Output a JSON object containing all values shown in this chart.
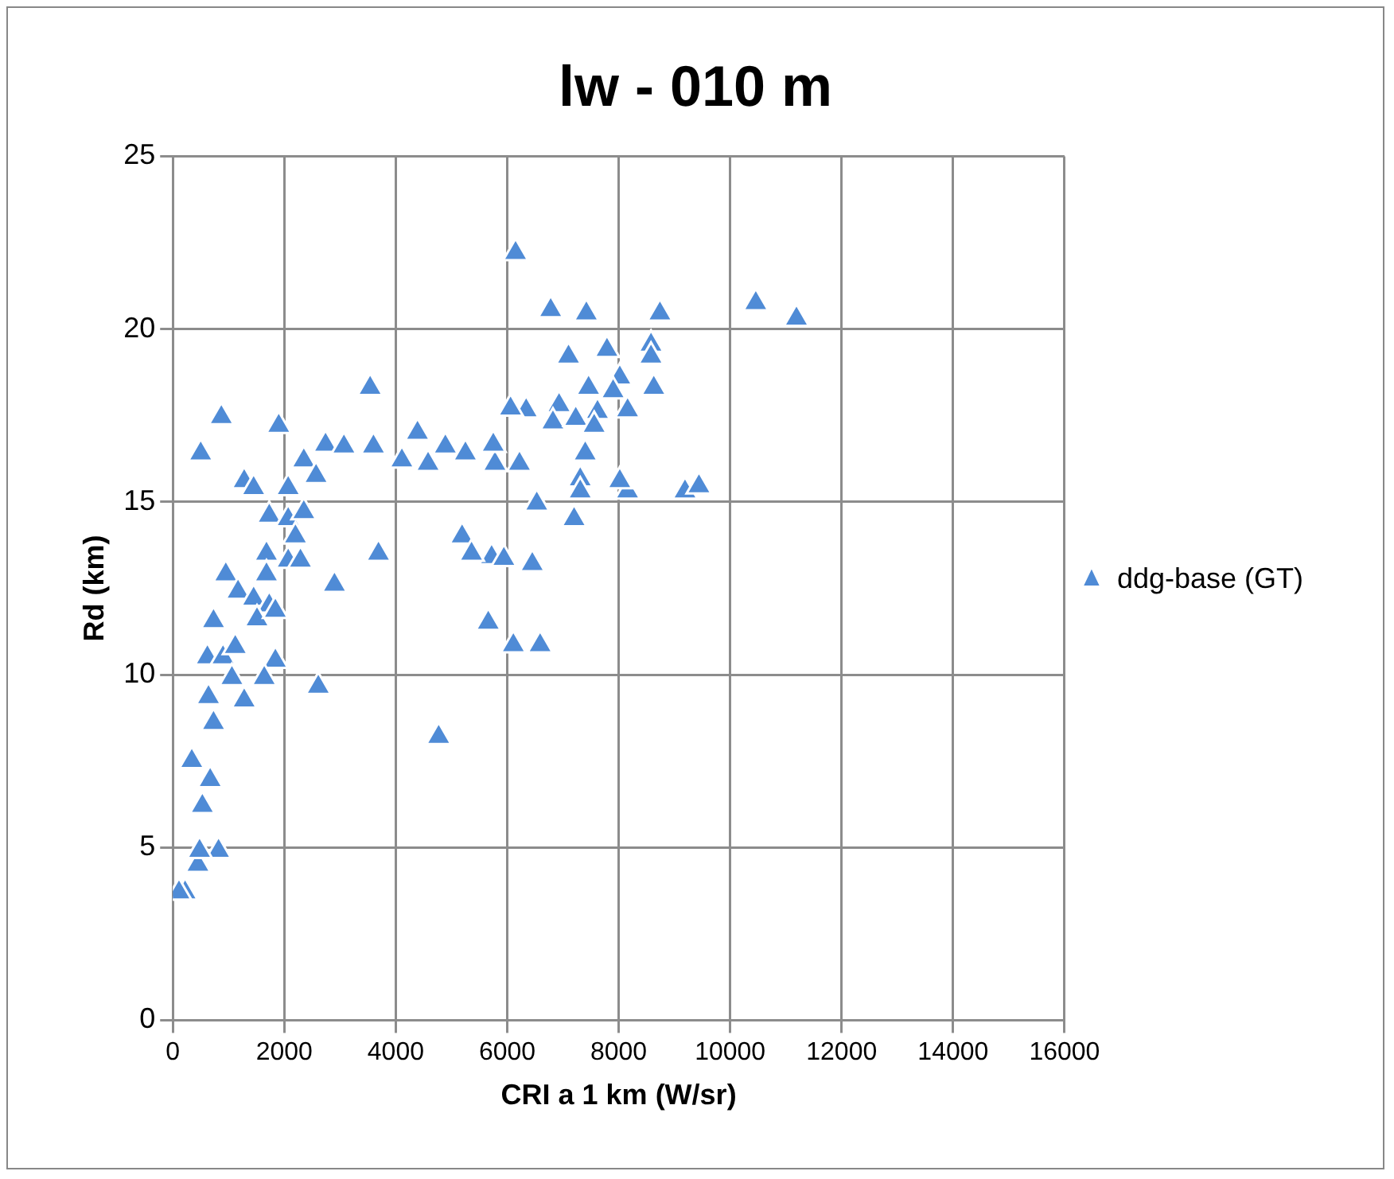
{
  "chart_data": {
    "type": "scatter",
    "title": "lw - 010 m",
    "xlabel": "CRI a 1 km (W/sr)",
    "ylabel": "Rd (km)",
    "xlim": [
      0,
      16000
    ],
    "xticks": [
      0,
      2000,
      4000,
      6000,
      8000,
      10000,
      12000,
      14000,
      16000
    ],
    "ylim": [
      0,
      25
    ],
    "yticks": [
      0,
      5,
      10,
      15,
      20,
      25
    ],
    "grid": true,
    "legend": "right",
    "marker": "triangle",
    "series": [
      {
        "name": "ddg-base (GT)",
        "color": "#4f8bd6",
        "x": [
          6150,
          10460,
          11190,
          6780,
          7420,
          8740,
          7100,
          7790,
          8580,
          8580,
          8020,
          8630,
          7900,
          7460,
          6930,
          6340,
          6060,
          6820,
          7230,
          7620,
          8160,
          7560,
          7400,
          5780,
          6220,
          7310,
          7310,
          8160,
          8020,
          9190,
          9440,
          6530,
          7200,
          5720,
          5940,
          6450,
          5660,
          6110,
          6590,
          3540,
          870,
          1900,
          500,
          2350,
          2740,
          3070,
          3600,
          4390,
          4110,
          4580,
          4890,
          5250,
          5750,
          1280,
          1450,
          2070,
          2570,
          1730,
          2070,
          2350,
          2200,
          3690,
          5190,
          5360,
          1680,
          2070,
          950,
          1680,
          2290,
          2900,
          1170,
          1450,
          1730,
          730,
          1510,
          1840,
          620,
          900,
          1120,
          1840,
          1060,
          1640,
          640,
          1280,
          730,
          2610,
          4770,
          340,
          670,
          530,
          450,
          820,
          480,
          220,
          110
        ],
        "values": [
          22.2,
          20.75,
          20.3,
          20.55,
          20.45,
          20.45,
          19.2,
          19.4,
          19.55,
          19.2,
          18.6,
          18.3,
          18.2,
          18.3,
          17.8,
          17.65,
          17.7,
          17.3,
          17.4,
          17.6,
          17.65,
          17.2,
          16.4,
          16.1,
          16.1,
          15.65,
          15.3,
          15.3,
          15.6,
          15.3,
          15.45,
          14.95,
          14.5,
          13.4,
          13.35,
          13.2,
          11.5,
          10.85,
          10.85,
          18.3,
          17.45,
          17.2,
          16.4,
          16.2,
          16.65,
          16.6,
          16.6,
          17.0,
          16.2,
          16.1,
          16.6,
          16.4,
          16.65,
          15.6,
          15.4,
          15.4,
          15.75,
          14.6,
          14.5,
          14.7,
          14.0,
          13.5,
          14.0,
          13.5,
          13.5,
          13.3,
          12.9,
          12.9,
          13.3,
          12.6,
          12.4,
          12.2,
          12.0,
          11.55,
          11.6,
          11.85,
          10.5,
          10.5,
          10.8,
          10.4,
          9.9,
          9.9,
          9.35,
          9.25,
          8.6,
          9.65,
          8.2,
          7.5,
          6.95,
          6.2,
          4.5,
          4.9,
          4.9,
          3.7,
          3.7
        ]
      }
    ]
  }
}
